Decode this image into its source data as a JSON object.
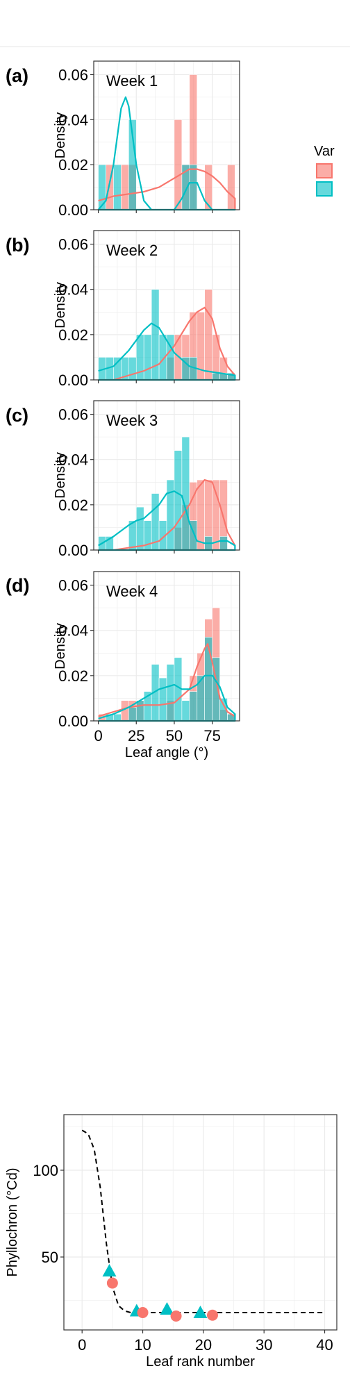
{
  "colors": {
    "series_a": "#F8766D",
    "series_b": "#00BFC4",
    "grid": "#ebebeb",
    "frame": "#333333"
  },
  "legend": {
    "title": "Var",
    "placement": "right"
  },
  "chart_data": [
    {
      "panel": "(a)",
      "type": "histogram+density",
      "title": "Week 1",
      "ylabel": "Density",
      "xlabel": "",
      "xlim": [
        -3,
        93
      ],
      "ylim": [
        0,
        0.066
      ],
      "y_ticks": [
        "0.00",
        "0.02",
        "0.04",
        "0.06"
      ],
      "x_ticks": [],
      "bin_width": 5,
      "series": [
        {
          "color": "#F8766D",
          "bins": [
            [
              5,
              10,
              0.02
            ],
            [
              15,
              20,
              0.02
            ],
            [
              20,
              25,
              0.02
            ],
            [
              50,
              55,
              0.04
            ],
            [
              55,
              60,
              0.02
            ],
            [
              60,
              65,
              0.06
            ],
            [
              70,
              75,
              0.02
            ],
            [
              85,
              90,
              0.02
            ]
          ],
          "density": [
            [
              0,
              0.004
            ],
            [
              5,
              0.005
            ],
            [
              10,
              0.006
            ],
            [
              20,
              0.007
            ],
            [
              30,
              0.008
            ],
            [
              40,
              0.01
            ],
            [
              50,
              0.014
            ],
            [
              55,
              0.016
            ],
            [
              60,
              0.018
            ],
            [
              65,
              0.018
            ],
            [
              70,
              0.017
            ],
            [
              75,
              0.015
            ],
            [
              80,
              0.012
            ],
            [
              85,
              0.008
            ],
            [
              90,
              0.005
            ]
          ]
        },
        {
          "color": "#00BFC4",
          "bins": [
            [
              0,
              5,
              0.02
            ],
            [
              10,
              15,
              0.02
            ],
            [
              20,
              25,
              0.04
            ],
            [
              55,
              60,
              0.02
            ],
            [
              60,
              65,
              0.02
            ]
          ],
          "density": [
            [
              0,
              0
            ],
            [
              5,
              0.004
            ],
            [
              10,
              0.02
            ],
            [
              15,
              0.045
            ],
            [
              18,
              0.05
            ],
            [
              20,
              0.046
            ],
            [
              25,
              0.02
            ],
            [
              30,
              0.004
            ],
            [
              35,
              0
            ],
            [
              45,
              0
            ],
            [
              50,
              0
            ],
            [
              55,
              0.005
            ],
            [
              60,
              0.012
            ],
            [
              65,
              0.012
            ],
            [
              70,
              0.004
            ],
            [
              75,
              0
            ],
            [
              90,
              0
            ]
          ]
        }
      ]
    },
    {
      "panel": "(b)",
      "type": "histogram+density",
      "title": "Week 2",
      "ylabel": "Density",
      "xlabel": "",
      "xlim": [
        -3,
        93
      ],
      "ylim": [
        0,
        0.066
      ],
      "y_ticks": [
        "0.00",
        "0.02",
        "0.04",
        "0.06"
      ],
      "x_ticks": [],
      "bin_width": 5,
      "series": [
        {
          "color": "#F8766D",
          "bins": [
            [
              45,
              50,
              0.01
            ],
            [
              50,
              55,
              0.02
            ],
            [
              55,
              60,
              0.02
            ],
            [
              60,
              65,
              0.03
            ],
            [
              65,
              70,
              0.03
            ],
            [
              70,
              75,
              0.04
            ],
            [
              75,
              80,
              0.02
            ],
            [
              80,
              85,
              0.01
            ],
            [
              85,
              90,
              0.003
            ]
          ],
          "density": [
            [
              0,
              0
            ],
            [
              10,
              0
            ],
            [
              20,
              0.002
            ],
            [
              30,
              0.004
            ],
            [
              40,
              0.007
            ],
            [
              50,
              0.015
            ],
            [
              60,
              0.026
            ],
            [
              65,
              0.03
            ],
            [
              70,
              0.032
            ],
            [
              75,
              0.027
            ],
            [
              80,
              0.014
            ],
            [
              85,
              0.006
            ],
            [
              90,
              0.002
            ]
          ]
        },
        {
          "color": "#00BFC4",
          "bins": [
            [
              0,
              5,
              0.01
            ],
            [
              5,
              10,
              0.01
            ],
            [
              10,
              15,
              0.01
            ],
            [
              15,
              20,
              0.01
            ],
            [
              20,
              25,
              0.01
            ],
            [
              25,
              30,
              0.02
            ],
            [
              30,
              35,
              0.02
            ],
            [
              35,
              40,
              0.04
            ],
            [
              40,
              45,
              0.02
            ],
            [
              45,
              50,
              0.02
            ],
            [
              55,
              60,
              0.01
            ],
            [
              60,
              65,
              0.01
            ],
            [
              75,
              80,
              0.003
            ],
            [
              80,
              85,
              0.003
            ],
            [
              85,
              90,
              0.003
            ]
          ],
          "density": [
            [
              0,
              0.004
            ],
            [
              10,
              0.006
            ],
            [
              20,
              0.013
            ],
            [
              30,
              0.022
            ],
            [
              35,
              0.025
            ],
            [
              40,
              0.023
            ],
            [
              50,
              0.012
            ],
            [
              60,
              0.006
            ],
            [
              70,
              0.004
            ],
            [
              80,
              0.003
            ],
            [
              90,
              0.002
            ]
          ]
        }
      ]
    },
    {
      "panel": "(c)",
      "type": "histogram+density",
      "title": "Week 3",
      "ylabel": "Density",
      "xlabel": "",
      "xlim": [
        -3,
        93
      ],
      "ylim": [
        0,
        0.066
      ],
      "y_ticks": [
        "0.00",
        "0.02",
        "0.04",
        "0.06"
      ],
      "x_ticks": [],
      "bin_width": 5,
      "series": [
        {
          "color": "#F8766D",
          "bins": [
            [
              50,
              55,
              0.01
            ],
            [
              55,
              60,
              0.02
            ],
            [
              60,
              65,
              0.03
            ],
            [
              65,
              70,
              0.031
            ],
            [
              70,
              75,
              0.031
            ],
            [
              75,
              80,
              0.031
            ],
            [
              80,
              85,
              0.031
            ]
          ],
          "density": [
            [
              0,
              0
            ],
            [
              10,
              0
            ],
            [
              20,
              0.001
            ],
            [
              30,
              0.002
            ],
            [
              40,
              0.004
            ],
            [
              50,
              0.01
            ],
            [
              60,
              0.02
            ],
            [
              65,
              0.027
            ],
            [
              70,
              0.031
            ],
            [
              75,
              0.03
            ],
            [
              80,
              0.02
            ],
            [
              85,
              0.008
            ],
            [
              90,
              0.002
            ]
          ]
        },
        {
          "color": "#00BFC4",
          "bins": [
            [
              0,
              5,
              0.006
            ],
            [
              5,
              10,
              0.006
            ],
            [
              20,
              25,
              0.013
            ],
            [
              25,
              30,
              0.019
            ],
            [
              30,
              35,
              0.013
            ],
            [
              35,
              40,
              0.025
            ],
            [
              40,
              45,
              0.013
            ],
            [
              45,
              50,
              0.031
            ],
            [
              50,
              55,
              0.044
            ],
            [
              55,
              60,
              0.05
            ],
            [
              60,
              65,
              0.013
            ],
            [
              70,
              75,
              0.006
            ],
            [
              80,
              85,
              0.006
            ]
          ],
          "density": [
            [
              0,
              0.002
            ],
            [
              10,
              0.006
            ],
            [
              20,
              0.011
            ],
            [
              25,
              0.013
            ],
            [
              30,
              0.014
            ],
            [
              40,
              0.02
            ],
            [
              45,
              0.025
            ],
            [
              50,
              0.026
            ],
            [
              55,
              0.024
            ],
            [
              60,
              0.012
            ],
            [
              65,
              0.004
            ],
            [
              70,
              0.003
            ],
            [
              75,
              0.003
            ],
            [
              80,
              0.004
            ],
            [
              85,
              0.004
            ],
            [
              90,
              0.002
            ]
          ]
        }
      ]
    },
    {
      "panel": "(d)",
      "type": "histogram+density",
      "title": "Week 4",
      "ylabel": "Density",
      "xlabel": "Leaf angle (°)",
      "xlim": [
        -3,
        93
      ],
      "ylim": [
        0,
        0.066
      ],
      "y_ticks": [
        "0.00",
        "0.02",
        "0.04",
        "0.06"
      ],
      "x_ticks": [
        "0",
        "25",
        "50",
        "75"
      ],
      "bin_width": 5,
      "series": [
        {
          "color": "#F8766D",
          "bins": [
            [
              0,
              5,
              0.003
            ],
            [
              15,
              20,
              0.009
            ],
            [
              20,
              25,
              0.009
            ],
            [
              25,
              30,
              0.009
            ],
            [
              45,
              50,
              0.009
            ],
            [
              60,
              65,
              0.02
            ],
            [
              65,
              70,
              0.03
            ],
            [
              70,
              75,
              0.045
            ],
            [
              75,
              80,
              0.05
            ],
            [
              80,
              85,
              0.005
            ],
            [
              85,
              90,
              0.003
            ]
          ],
          "density": [
            [
              0,
              0.002
            ],
            [
              10,
              0.004
            ],
            [
              20,
              0.006
            ],
            [
              30,
              0.007
            ],
            [
              40,
              0.007
            ],
            [
              50,
              0.008
            ],
            [
              60,
              0.014
            ],
            [
              65,
              0.024
            ],
            [
              70,
              0.032
            ],
            [
              72,
              0.034
            ],
            [
              75,
              0.026
            ],
            [
              80,
              0.01
            ],
            [
              85,
              0.004
            ],
            [
              90,
              0.002
            ]
          ]
        },
        {
          "color": "#00BFC4",
          "bins": [
            [
              5,
              10,
              0.003
            ],
            [
              10,
              15,
              0.003
            ],
            [
              20,
              25,
              0.006
            ],
            [
              25,
              30,
              0.009
            ],
            [
              30,
              35,
              0.013
            ],
            [
              35,
              40,
              0.025
            ],
            [
              40,
              45,
              0.019
            ],
            [
              45,
              50,
              0.025
            ],
            [
              50,
              55,
              0.028
            ],
            [
              55,
              60,
              0.009
            ],
            [
              60,
              65,
              0.013
            ],
            [
              65,
              70,
              0.02
            ],
            [
              70,
              75,
              0.037
            ],
            [
              75,
              80,
              0.028
            ],
            [
              80,
              85,
              0.01
            ],
            [
              85,
              90,
              0.003
            ]
          ],
          "density": [
            [
              0,
              0.001
            ],
            [
              10,
              0.003
            ],
            [
              20,
              0.006
            ],
            [
              30,
              0.01
            ],
            [
              40,
              0.014
            ],
            [
              50,
              0.016
            ],
            [
              55,
              0.014
            ],
            [
              60,
              0.014
            ],
            [
              65,
              0.016
            ],
            [
              70,
              0.02
            ],
            [
              75,
              0.02
            ],
            [
              80,
              0.015
            ],
            [
              85,
              0.006
            ],
            [
              90,
              0.003
            ]
          ]
        }
      ]
    },
    {
      "panel": "",
      "type": "scatter+line",
      "title": "",
      "ylabel": "Phyllochron (°Cd)",
      "xlabel": "Leaf rank number",
      "xlim": [
        -3,
        42
      ],
      "ylim": [
        8,
        132
      ],
      "x_ticks": [
        0,
        10,
        20,
        30,
        40
      ],
      "y_ticks": [
        50,
        100
      ],
      "series": [
        {
          "color": "#00BFC4",
          "marker": "triangle",
          "points": [
            [
              4.5,
              42
            ],
            [
              9,
              19
            ],
            [
              14,
              20
            ],
            [
              19.5,
              18
            ]
          ]
        },
        {
          "color": "#F8766D",
          "marker": "circle",
          "points": [
            [
              5,
              35
            ],
            [
              10,
              18
            ],
            [
              15.5,
              16
            ],
            [
              21.5,
              16.5
            ]
          ]
        },
        {
          "color": "#000000",
          "marker": "none",
          "style": "dashed",
          "line": [
            [
              0,
              123
            ],
            [
              1,
              121
            ],
            [
              2,
              112
            ],
            [
              3,
              90
            ],
            [
              4,
              58
            ],
            [
              5,
              33
            ],
            [
              6,
              22
            ],
            [
              7,
              19
            ],
            [
              8,
              18
            ],
            [
              10,
              18
            ],
            [
              20,
              18
            ],
            [
              30,
              18
            ],
            [
              40,
              18
            ]
          ]
        }
      ]
    }
  ]
}
